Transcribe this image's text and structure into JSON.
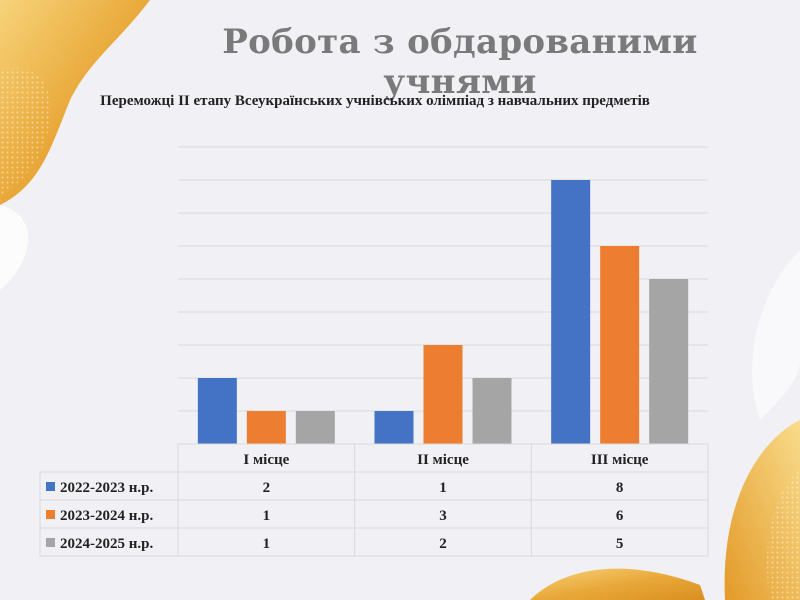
{
  "slide": {
    "title": "Робота з обдарованими учнями",
    "accent_color": "#e7a93a"
  },
  "chart_data": {
    "type": "bar",
    "title": "Переможці ІІ етапу Всеукраїнських учнівських олімпіад з навчальних предметів",
    "categories": [
      "І місце",
      "ІІ місце",
      "ІІІ місце"
    ],
    "series": [
      {
        "name": "2022-2023 н.р.",
        "values": [
          2,
          1,
          8
        ],
        "color": "#4472c4"
      },
      {
        "name": "2023-2024 н.р.",
        "values": [
          1,
          3,
          6
        ],
        "color": "#ed7d31"
      },
      {
        "name": "2024-2025 н.р.",
        "values": [
          1,
          2,
          5
        ],
        "color": "#a5a5a5"
      }
    ],
    "ylim": [
      0,
      9
    ],
    "grid": true,
    "legend": "data-table"
  }
}
